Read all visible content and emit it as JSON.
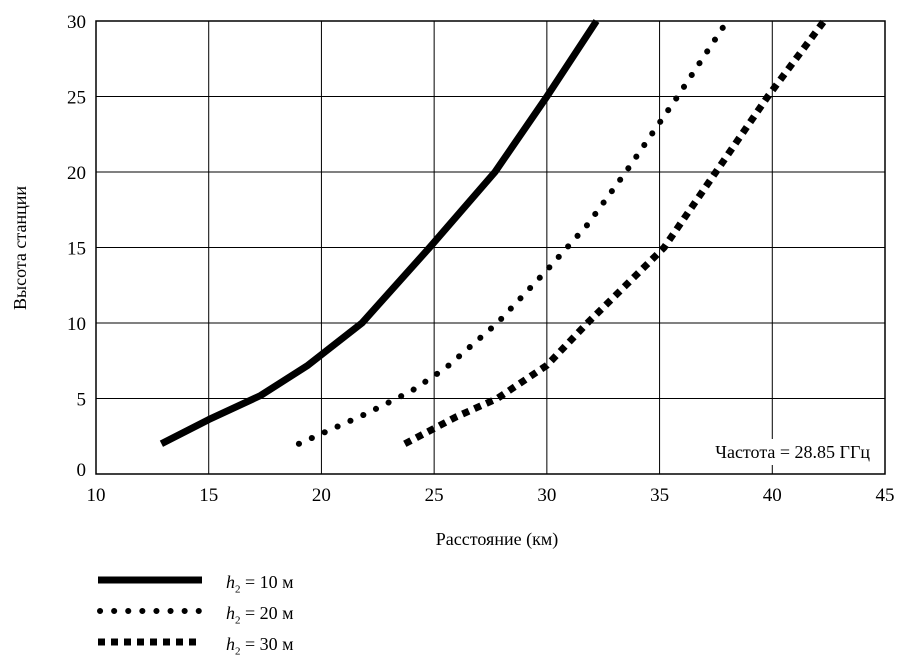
{
  "chart_data": {
    "type": "line",
    "title": "",
    "xlabel": "Расстояние (км)",
    "ylabel": "Высота станции",
    "xlim": [
      10,
      45
    ],
    "ylim": [
      0,
      30
    ],
    "xticks": [
      10,
      15,
      20,
      25,
      30,
      35,
      40,
      45
    ],
    "yticks": [
      0,
      5,
      10,
      15,
      20,
      25,
      30
    ],
    "grid": true,
    "annotation": "Частота = 28.85 ГГц",
    "legend_position": "bottom-left",
    "series": [
      {
        "legend_var": "h",
        "legend_sub": "2",
        "legend_value": " = 10 м",
        "style": "solid",
        "x": [
          12.9,
          15.0,
          17.3,
          19.4,
          21.8,
          24.8,
          27.7,
          30.0,
          32.2
        ],
        "y": [
          2.0,
          3.6,
          5.2,
          7.2,
          10.0,
          15.0,
          20.0,
          25.0,
          30.0
        ]
      },
      {
        "legend_var": "h",
        "legend_sub": "2",
        "legend_value": " = 20 м",
        "style": "dotted",
        "x": [
          19.0,
          22.0,
          24.0,
          25.5,
          27.8,
          30.0,
          31.8,
          33.5,
          35.8,
          38.0
        ],
        "y": [
          2.0,
          4.0,
          5.5,
          7.0,
          10.0,
          13.5,
          16.5,
          20.0,
          25.0,
          30.0
        ]
      },
      {
        "legend_var": "h",
        "legend_sub": "2",
        "legend_value": " = 30 м",
        "style": "dashed",
        "x": [
          23.7,
          26.0,
          27.8,
          30.0,
          31.8,
          33.5,
          35.2,
          37.5,
          39.8,
          42.3
        ],
        "y": [
          2.0,
          3.8,
          5.0,
          7.2,
          10.0,
          12.5,
          15.0,
          20.0,
          25.0,
          30.0
        ]
      }
    ]
  }
}
